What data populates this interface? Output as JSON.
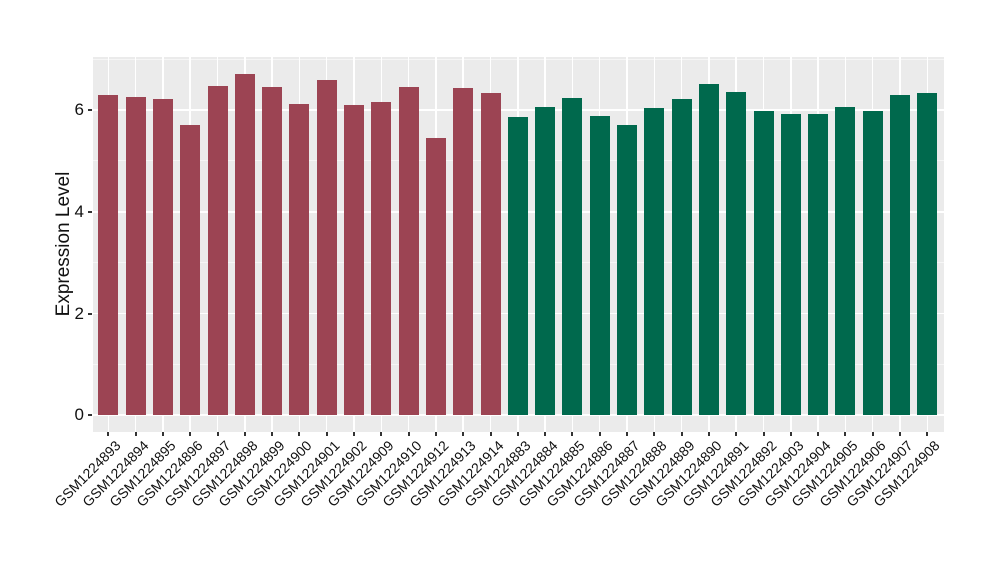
{
  "chart_data": {
    "type": "bar",
    "title": "",
    "xlabel": "",
    "ylabel": "Expression Level",
    "ylim": [
      0,
      7.05
    ],
    "grid": true,
    "legend_position": "none",
    "panel_bg": "#EBEBEB",
    "grid_color": "#FFFFFF",
    "tick_color": "#333333",
    "group_colors": {
      "group1": "#9C4453",
      "group2": "#00694D"
    },
    "yticks": [
      {
        "v": 0,
        "label": "0"
      },
      {
        "v": 2,
        "label": "2"
      },
      {
        "v": 4,
        "label": "4"
      },
      {
        "v": 6,
        "label": "6"
      }
    ],
    "yticks_minor": [
      1,
      3,
      5,
      7
    ],
    "bars": [
      {
        "label": "GSM1224893",
        "value": 6.3,
        "group": "group1"
      },
      {
        "label": "GSM1224894",
        "value": 6.26,
        "group": "group1"
      },
      {
        "label": "GSM1224895",
        "value": 6.22,
        "group": "group1"
      },
      {
        "label": "GSM1224896",
        "value": 5.7,
        "group": "group1"
      },
      {
        "label": "GSM1224897",
        "value": 6.47,
        "group": "group1"
      },
      {
        "label": "GSM1224898",
        "value": 6.71,
        "group": "group1"
      },
      {
        "label": "GSM1224899",
        "value": 6.45,
        "group": "group1"
      },
      {
        "label": "GSM1224900",
        "value": 6.12,
        "group": "group1"
      },
      {
        "label": "GSM1224901",
        "value": 6.6,
        "group": "group1"
      },
      {
        "label": "GSM1224902",
        "value": 6.11,
        "group": "group1"
      },
      {
        "label": "GSM1224909",
        "value": 6.15,
        "group": "group1"
      },
      {
        "label": "GSM1224910",
        "value": 6.45,
        "group": "group1"
      },
      {
        "label": "GSM1224912",
        "value": 5.46,
        "group": "group1"
      },
      {
        "label": "GSM1224913",
        "value": 6.43,
        "group": "group1"
      },
      {
        "label": "GSM1224914",
        "value": 6.34,
        "group": "group1"
      },
      {
        "label": "GSM1224883",
        "value": 5.87,
        "group": "group2"
      },
      {
        "label": "GSM1224884",
        "value": 6.07,
        "group": "group2"
      },
      {
        "label": "GSM1224885",
        "value": 6.23,
        "group": "group2"
      },
      {
        "label": "GSM1224886",
        "value": 5.89,
        "group": "group2"
      },
      {
        "label": "GSM1224887",
        "value": 5.71,
        "group": "group2"
      },
      {
        "label": "GSM1224888",
        "value": 6.04,
        "group": "group2"
      },
      {
        "label": "GSM1224889",
        "value": 6.22,
        "group": "group2"
      },
      {
        "label": "GSM1224890",
        "value": 6.51,
        "group": "group2"
      },
      {
        "label": "GSM1224891",
        "value": 6.36,
        "group": "group2"
      },
      {
        "label": "GSM1224892",
        "value": 5.98,
        "group": "group2"
      },
      {
        "label": "GSM1224903",
        "value": 5.93,
        "group": "group2"
      },
      {
        "label": "GSM1224904",
        "value": 5.93,
        "group": "group2"
      },
      {
        "label": "GSM1224905",
        "value": 6.07,
        "group": "group2"
      },
      {
        "label": "GSM1224906",
        "value": 5.98,
        "group": "group2"
      },
      {
        "label": "GSM1224907",
        "value": 6.3,
        "group": "group2"
      },
      {
        "label": "GSM1224908",
        "value": 6.33,
        "group": "group2"
      }
    ]
  }
}
